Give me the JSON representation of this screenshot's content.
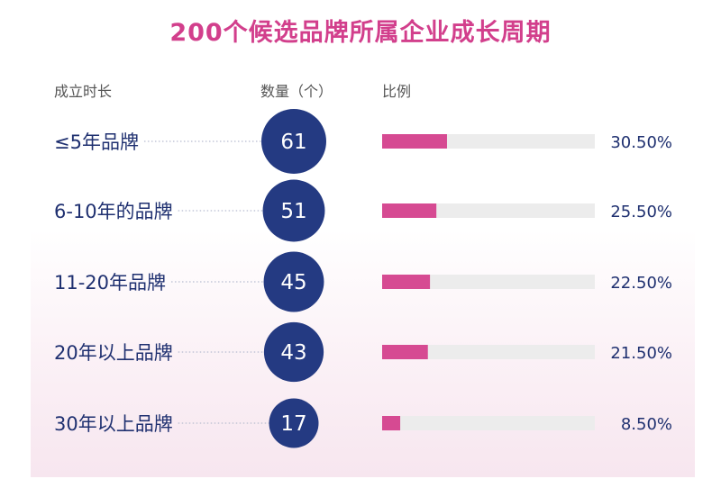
{
  "title": "200个候选品牌所属企业成长周期",
  "headers": {
    "duration": "成立时长",
    "count": "数量（个）",
    "ratio": "比例"
  },
  "colors": {
    "title": "#d23f8c",
    "bubble": "#243a82",
    "bar_fill": "#d64a92",
    "bar_track": "#ececec",
    "text": "#1f3070"
  },
  "chart_data": {
    "type": "bar",
    "title": "200个候选品牌所属企业成长周期",
    "categories": [
      "≤5年品牌",
      "6-10年的品牌",
      "11-20年品牌",
      "20年以上品牌",
      "30年以上品牌"
    ],
    "series": [
      {
        "name": "数量（个）",
        "values": [
          61,
          51,
          45,
          43,
          17
        ]
      },
      {
        "name": "比例",
        "values": [
          30.5,
          25.5,
          22.5,
          21.5,
          8.5
        ]
      }
    ],
    "count_labels": [
      "61",
      "51",
      "45",
      "43",
      "17"
    ],
    "percent_labels": [
      "30.50%",
      "25.50%",
      "22.50%",
      "21.50%",
      "8.50%"
    ],
    "xlim": [
      0,
      100
    ]
  }
}
